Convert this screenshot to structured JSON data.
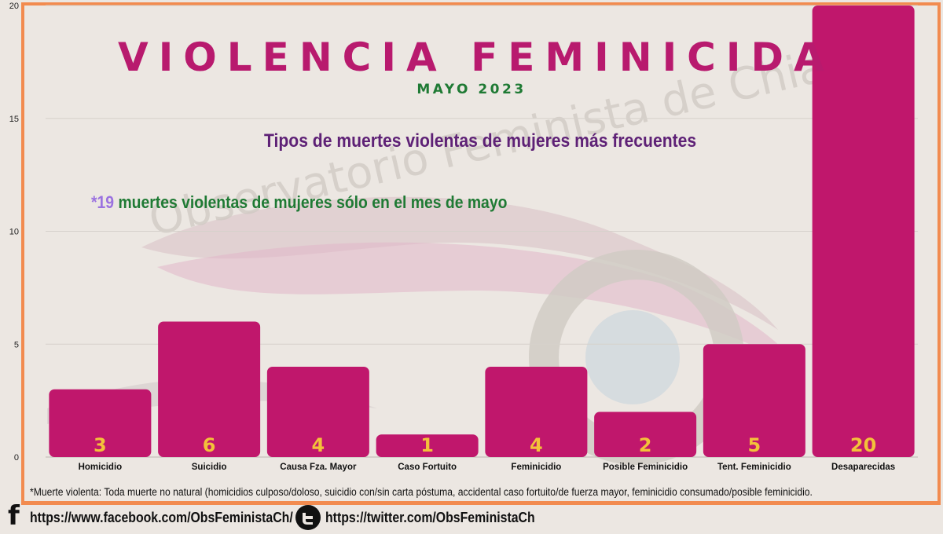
{
  "header": {
    "title": "VIOLENCIA FEMINICIDA",
    "subtitle": "MAYO 2023",
    "heading": "Tipos de muertes violentas de mujeres más frecuentes",
    "note_number": "*19",
    "note_text": " muertes violentas de mujeres sólo en el mes de mayo"
  },
  "watermark": {
    "text": "Observatorio Feminista de Chiapas"
  },
  "footnote": "*Muerte violenta: Toda muerte no natural (homicidios culposo/doloso, suicidio con/sin carta póstuma, accidental caso fortuito/de fuerza mayor, feminicidio consumado/posible feminicidio.",
  "social": {
    "facebook_url": "https://www.facebook.com/ObsFeministaCh/",
    "twitter_url": "https://twitter.com/ObsFeministaCh",
    "facebook_icon": "facebook-icon",
    "twitter_icon": "twitter-icon"
  },
  "colors": {
    "bar": "#c0176c",
    "value_label": "#f3c13a",
    "title": "#b81a6e",
    "subtitle": "#1f7a34",
    "heading": "#5e2176",
    "frame": "#f28b4f",
    "background": "#ece7e2"
  },
  "chart_data": {
    "type": "bar",
    "categories": [
      "Homicidio",
      "Suicidio",
      "Causa Fza. Mayor",
      "Caso Fortuito",
      "Feminicidio",
      "Posible Feminicidio",
      "Tent. Feminicidio",
      "Desaparecidas"
    ],
    "values": [
      3,
      6,
      4,
      1,
      4,
      2,
      5,
      20
    ],
    "data_labels": [
      "3",
      "6",
      "4",
      "1",
      "4",
      "2",
      "5",
      "20"
    ],
    "yticks": [
      0,
      5,
      10,
      15,
      20
    ],
    "ylim": [
      0,
      20
    ],
    "grid": true,
    "legend": "none"
  }
}
